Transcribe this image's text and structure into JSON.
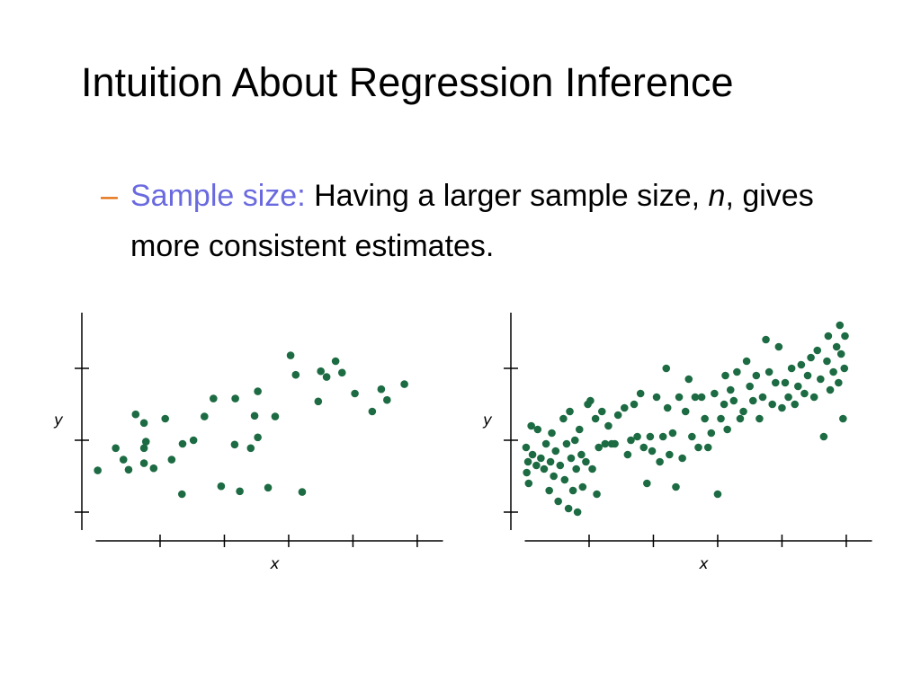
{
  "title": "Intuition About Regression Inference",
  "bullet": {
    "dash": "–",
    "label": "Sample size:",
    "text_before": "Having a larger sample size,",
    "variable": "n",
    "text_after": ", gives more consistent estimates."
  },
  "chart_data": [
    {
      "type": "scatter",
      "xlabel": "x",
      "ylabel": "y",
      "color": "#1d6b43",
      "xlim": [
        0,
        5.4
      ],
      "ylim": [
        0.6,
        3.8
      ],
      "xticks": [
        1,
        2,
        3,
        4,
        5
      ],
      "yticks": [
        1,
        2,
        3
      ],
      "x": [
        0.03,
        0.31,
        0.43,
        0.51,
        0.62,
        0.75,
        0.78,
        0.75,
        0.75,
        0.9,
        1.08,
        1.18,
        1.35,
        1.34,
        1.52,
        1.69,
        1.83,
        1.95,
        2.17,
        2.16,
        2.24,
        2.41,
        2.47,
        2.52,
        2.52,
        2.68,
        2.79,
        3.03,
        3.11,
        3.21,
        3.46,
        3.5,
        3.59,
        3.73,
        3.83,
        4.03,
        4.3,
        4.44,
        4.53,
        4.8
      ],
      "y": [
        1.58,
        1.89,
        1.73,
        1.59,
        2.36,
        2.24,
        1.98,
        1.89,
        1.68,
        1.61,
        2.3,
        1.73,
        1.95,
        1.25,
        2.0,
        2.33,
        2.58,
        1.36,
        2.58,
        1.94,
        1.29,
        1.89,
        2.34,
        2.68,
        2.04,
        1.34,
        2.33,
        3.18,
        2.91,
        1.28,
        2.54,
        2.96,
        2.88,
        3.1,
        2.94,
        2.65,
        2.4,
        2.71,
        2.56,
        2.78
      ]
    },
    {
      "type": "scatter",
      "xlabel": "x",
      "ylabel": "y",
      "color": "#1d6b43",
      "xlim": [
        0,
        5.4
      ],
      "ylim": [
        0.6,
        3.8
      ],
      "xticks": [
        1,
        2,
        3,
        4,
        5
      ],
      "yticks": [
        1,
        2,
        3
      ],
      "x": [
        0.02,
        0.03,
        0.05,
        0.06,
        0.1,
        0.12,
        0.18,
        0.2,
        0.25,
        0.3,
        0.33,
        0.38,
        0.4,
        0.42,
        0.45,
        0.48,
        0.52,
        0.55,
        0.6,
        0.62,
        0.65,
        0.68,
        0.7,
        0.72,
        0.75,
        0.78,
        0.8,
        0.82,
        0.85,
        0.88,
        0.9,
        0.95,
        0.98,
        1.02,
        1.05,
        1.1,
        1.12,
        1.15,
        1.2,
        1.25,
        1.3,
        1.35,
        1.4,
        1.45,
        1.55,
        1.6,
        1.65,
        1.7,
        1.75,
        1.8,
        1.85,
        1.9,
        1.95,
        1.98,
        2.05,
        2.1,
        2.15,
        2.2,
        2.22,
        2.25,
        2.3,
        2.35,
        2.4,
        2.45,
        2.5,
        2.55,
        2.6,
        2.65,
        2.7,
        2.75,
        2.8,
        2.85,
        2.9,
        2.95,
        3.0,
        3.05,
        3.1,
        3.12,
        3.15,
        3.2,
        3.25,
        3.3,
        3.35,
        3.4,
        3.45,
        3.5,
        3.55,
        3.6,
        3.65,
        3.7,
        3.75,
        3.8,
        3.85,
        3.9,
        3.95,
        4.0,
        4.05,
        4.1,
        4.15,
        4.2,
        4.25,
        4.3,
        4.35,
        4.4,
        4.45,
        4.5,
        4.55,
        4.6,
        4.65,
        4.7,
        4.72,
        4.75,
        4.8,
        4.85,
        4.88,
        4.9,
        4.92,
        4.95,
        4.97,
        4.98
      ],
      "y": [
        1.9,
        1.55,
        1.7,
        1.4,
        2.2,
        1.8,
        1.65,
        2.15,
        1.75,
        1.6,
        1.95,
        1.3,
        1.7,
        2.1,
        1.5,
        1.85,
        1.15,
        1.65,
        2.3,
        1.45,
        1.95,
        1.05,
        2.4,
        1.75,
        1.3,
        2.0,
        1.6,
        1.0,
        2.15,
        1.8,
        1.35,
        1.7,
        2.5,
        2.55,
        1.6,
        2.3,
        1.25,
        1.9,
        2.4,
        1.95,
        2.2,
        1.95,
        1.95,
        2.35,
        2.45,
        1.8,
        2.0,
        2.5,
        2.05,
        2.65,
        1.9,
        1.4,
        2.05,
        1.85,
        2.6,
        1.7,
        2.05,
        3.0,
        2.45,
        1.8,
        2.1,
        1.35,
        2.6,
        1.75,
        2.4,
        2.85,
        2.05,
        2.6,
        1.9,
        2.6,
        2.3,
        1.9,
        2.1,
        2.65,
        1.25,
        2.3,
        2.5,
        2.9,
        2.15,
        2.7,
        2.55,
        2.95,
        2.3,
        2.4,
        3.1,
        2.75,
        2.55,
        2.9,
        2.3,
        2.6,
        3.4,
        2.95,
        2.5,
        2.8,
        3.3,
        2.45,
        2.8,
        2.6,
        3.0,
        2.5,
        2.75,
        3.05,
        2.65,
        2.9,
        3.15,
        2.6,
        3.25,
        2.85,
        2.05,
        3.1,
        3.45,
        2.7,
        2.95,
        3.3,
        2.8,
        3.6,
        3.2,
        2.3,
        3.0,
        3.45
      ]
    }
  ]
}
